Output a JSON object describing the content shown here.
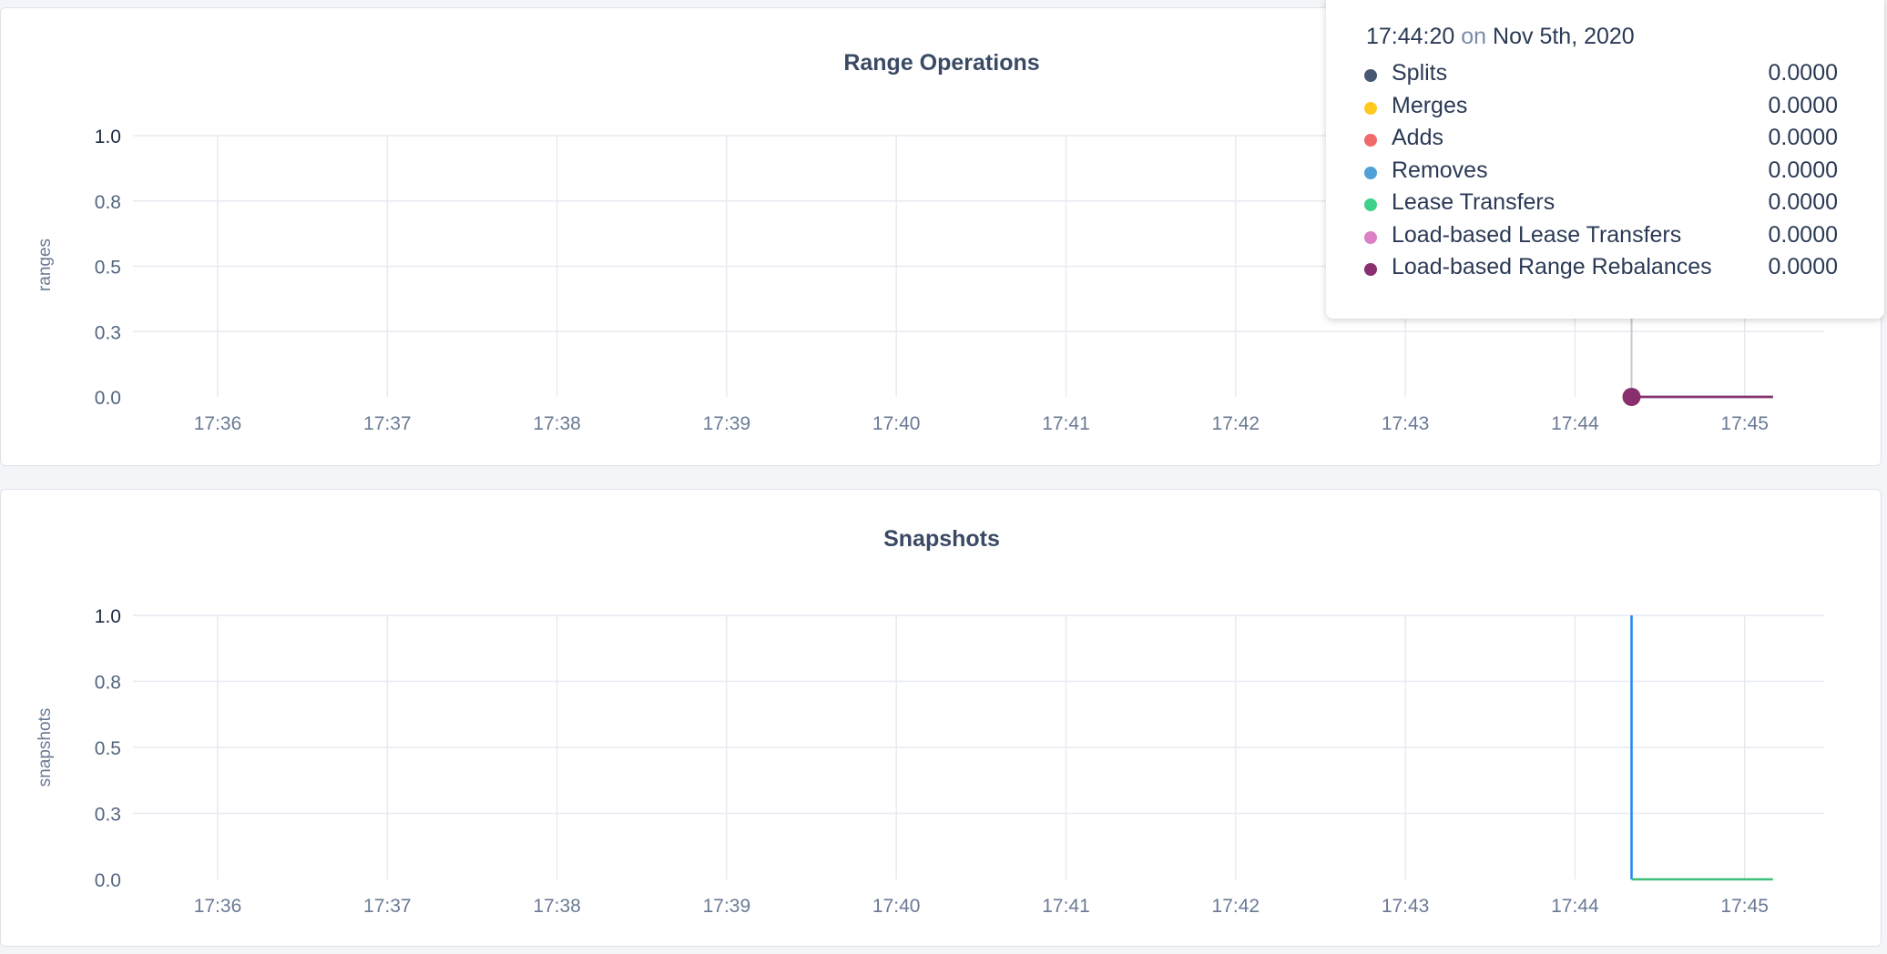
{
  "chart_data": [
    {
      "type": "line",
      "title": "Range Operations",
      "ylabel": "ranges",
      "ylim": [
        0,
        1
      ],
      "yticks": [
        "0.0",
        "0.3",
        "0.5",
        "0.8",
        "1.0"
      ],
      "xticks": [
        "17:36",
        "17:37",
        "17:38",
        "17:39",
        "17:40",
        "17:41",
        "17:42",
        "17:43",
        "17:44",
        "17:45"
      ],
      "grid": true,
      "series": [
        {
          "name": "Splits",
          "color": "#475872",
          "points": [
            [
              "17:44:20",
              0
            ],
            [
              "17:45:10",
              0
            ]
          ]
        },
        {
          "name": "Merges",
          "color": "#ffc91f",
          "points": [
            [
              "17:44:20",
              0
            ],
            [
              "17:45:10",
              0
            ]
          ]
        },
        {
          "name": "Adds",
          "color": "#f06a6a",
          "points": [
            [
              "17:44:20",
              0
            ],
            [
              "17:45:10",
              0
            ]
          ]
        },
        {
          "name": "Removes",
          "color": "#4ea0d8",
          "points": [
            [
              "17:44:20",
              0
            ],
            [
              "17:45:10",
              0
            ]
          ]
        },
        {
          "name": "Lease Transfers",
          "color": "#3fd08a",
          "points": [
            [
              "17:44:20",
              0
            ],
            [
              "17:45:10",
              0
            ]
          ]
        },
        {
          "name": "Load-based Lease Transfers",
          "color": "#da80c4",
          "points": [
            [
              "17:44:20",
              0
            ],
            [
              "17:45:10",
              0
            ]
          ]
        },
        {
          "name": "Load-based Range Rebalances",
          "color": "#8a2f6e",
          "points": [
            [
              "17:44:20",
              0
            ],
            [
              "17:45:10",
              0
            ]
          ]
        }
      ],
      "tooltip": {
        "time": "17:44:20",
        "on": "on",
        "date": "Nov 5th, 2020",
        "values": [
          "0.0000",
          "0.0000",
          "0.0000",
          "0.0000",
          "0.0000",
          "0.0000",
          "0.0000"
        ]
      }
    },
    {
      "type": "line",
      "title": "Snapshots",
      "ylabel": "snapshots",
      "ylim": [
        0,
        1
      ],
      "yticks": [
        "0.0",
        "0.3",
        "0.5",
        "0.8",
        "1.0"
      ],
      "xticks": [
        "17:36",
        "17:37",
        "17:38",
        "17:39",
        "17:40",
        "17:41",
        "17:42",
        "17:43",
        "17:44",
        "17:45"
      ],
      "grid": true,
      "series": [
        {
          "color": "#1f86f5",
          "points": [
            [
              "17:44:20",
              1
            ],
            [
              "17:44:20",
              0
            ]
          ]
        },
        {
          "color": "#3fc07a",
          "points": [
            [
              "17:44:20",
              0
            ],
            [
              "17:45:10",
              0
            ]
          ]
        }
      ]
    }
  ]
}
